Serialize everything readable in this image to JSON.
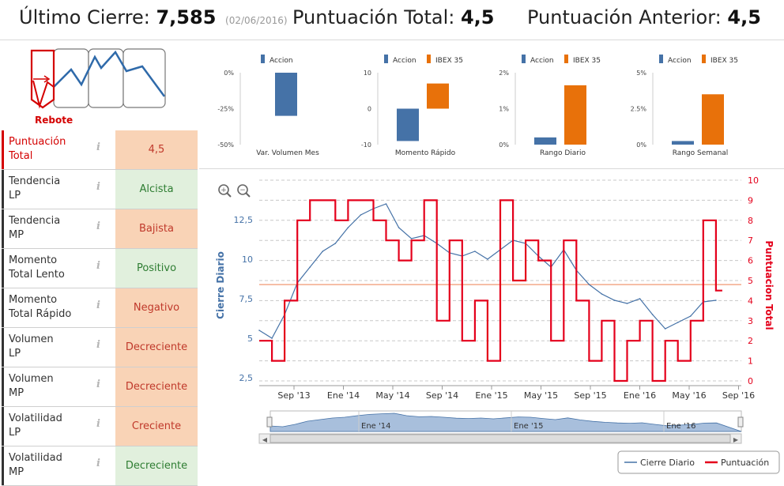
{
  "header": {
    "last_close_label": "Último Cierre:",
    "last_close_value": "7,585",
    "last_close_date": "(02/06/2016)",
    "total_score_label": "Puntuación Total:",
    "total_score_value": "4,5",
    "prev_score_label": "Puntuación Anterior:",
    "prev_score_value": "4,5"
  },
  "pattern": {
    "label": "Rebote"
  },
  "indicators": [
    {
      "label1": "Puntuación",
      "label2": "Total",
      "value": "4,5",
      "tone": "red"
    },
    {
      "label1": "Tendencia",
      "label2": "LP",
      "value": "Alcista",
      "tone": "green"
    },
    {
      "label1": "Tendencia",
      "label2": "MP",
      "value": "Bajista",
      "tone": "red"
    },
    {
      "label1": "Momento",
      "label2": "Total Lento",
      "value": "Positivo",
      "tone": "green"
    },
    {
      "label1": "Momento",
      "label2": "Total Rápido",
      "value": "Negativo",
      "tone": "red"
    },
    {
      "label1": "Volumen",
      "label2": "LP",
      "value": "Decreciente",
      "tone": "red"
    },
    {
      "label1": "Volumen",
      "label2": "MP",
      "value": "Decreciente",
      "tone": "red"
    },
    {
      "label1": "Volatilidad",
      "label2": "LP",
      "value": "Creciente",
      "tone": "red"
    },
    {
      "label1": "Volatilidad",
      "label2": "MP",
      "value": "Decreciente",
      "tone": "green"
    }
  ],
  "info_glyph": "i",
  "colors": {
    "accion": "#4572a7",
    "ibex": "#e8710a",
    "cierre": "#4572a7",
    "puntuacion": "#e4001b",
    "avg_line": "#f2a98a"
  },
  "chart_data": [
    {
      "type": "bar",
      "title": "Var. Volumen Mes",
      "legend": [
        "Accion"
      ],
      "series": [
        {
          "name": "Accion",
          "values": [
            -30
          ]
        }
      ],
      "yticks": [
        "0%",
        "-25%",
        "-50%"
      ],
      "ylim": [
        -50,
        0
      ]
    },
    {
      "type": "bar",
      "title": "Momento Rápido",
      "legend": [
        "Accion",
        "IBEX 35"
      ],
      "series": [
        {
          "name": "Accion",
          "values": [
            -9
          ]
        },
        {
          "name": "IBEX 35",
          "values": [
            7
          ]
        }
      ],
      "yticks": [
        "10",
        "0",
        "-10"
      ],
      "ylim": [
        -10,
        10
      ]
    },
    {
      "type": "bar",
      "title": "Rango Diario",
      "legend": [
        "Accion",
        "IBEX 35"
      ],
      "series": [
        {
          "name": "Accion",
          "values": [
            0.2
          ]
        },
        {
          "name": "IBEX 35",
          "values": [
            1.65
          ]
        }
      ],
      "yticks": [
        "2%",
        "1%",
        "0%"
      ],
      "ylim": [
        0,
        2
      ]
    },
    {
      "type": "bar",
      "title": "Rango Semanal",
      "legend": [
        "Accion",
        "IBEX 35"
      ],
      "series": [
        {
          "name": "Accion",
          "values": [
            0.25
          ]
        },
        {
          "name": "IBEX 35",
          "values": [
            3.5
          ]
        }
      ],
      "yticks": [
        "5%",
        "2.5%",
        "0%"
      ],
      "ylim": [
        0,
        5
      ]
    },
    {
      "type": "line",
      "title": "",
      "ylabel_left": "Cierre Diario",
      "ylabel_right": "Puntuacion Total",
      "left_ticks": [
        "12,5",
        "10",
        "7,5",
        "5",
        "2,5"
      ],
      "right_ticks": [
        "10",
        "9",
        "8",
        "7",
        "6",
        "5",
        "4",
        "3",
        "2",
        "1",
        "0"
      ],
      "ylim_left": [
        2,
        15
      ],
      "ylim_right": [
        0,
        10
      ],
      "x_ticks": [
        "Sep '13",
        "Ene '14",
        "May '14",
        "Sep '14",
        "Ene '15",
        "May '15",
        "Sep '15",
        "Ene '16",
        "May '16",
        "Sep '16"
      ],
      "x_range": [
        0,
        38
      ],
      "navigator_ticks": [
        "Ene '14",
        "Ene '15",
        "Ene '16"
      ],
      "legend": [
        "Cierre Diario",
        "Puntuación"
      ],
      "avg_score_line": 4.8,
      "series": [
        {
          "name": "Cierre Diario",
          "x": [
            0,
            1,
            2,
            3,
            4,
            5,
            6,
            7,
            8,
            9,
            10,
            11,
            12,
            13,
            14,
            15,
            16,
            17,
            18,
            19,
            20,
            21,
            22,
            23,
            24,
            25,
            26,
            27,
            28,
            29,
            30,
            31,
            32,
            33,
            34,
            35,
            36
          ],
          "values": [
            5.5,
            5.0,
            6.5,
            8.5,
            9.5,
            10.5,
            11.0,
            12.0,
            12.8,
            13.2,
            13.5,
            12.0,
            11.3,
            11.5,
            11.0,
            10.4,
            10.2,
            10.5,
            10.0,
            10.6,
            11.2,
            11.0,
            10.2,
            9.5,
            10.6,
            9.3,
            8.4,
            7.8,
            7.4,
            7.2,
            7.5,
            6.5,
            5.6,
            6.0,
            6.4,
            7.3,
            7.4
          ]
        },
        {
          "name": "Puntuación",
          "step": true,
          "x": [
            0,
            1,
            2,
            3,
            4,
            5,
            6,
            7,
            8,
            9,
            10,
            11,
            12,
            13,
            14,
            15,
            16,
            17,
            18,
            19,
            20,
            21,
            22,
            23,
            24,
            25,
            26,
            27,
            28,
            29,
            30,
            31,
            32,
            33,
            34,
            35,
            36
          ],
          "values": [
            2,
            1,
            4,
            8,
            9,
            9,
            8,
            9,
            9,
            8,
            7,
            6,
            7,
            9,
            3,
            7,
            2,
            4,
            1,
            9,
            5,
            7,
            6,
            2,
            7,
            4,
            1,
            3,
            0,
            2,
            3,
            0,
            2,
            1,
            3,
            8,
            4.5
          ]
        }
      ]
    }
  ]
}
